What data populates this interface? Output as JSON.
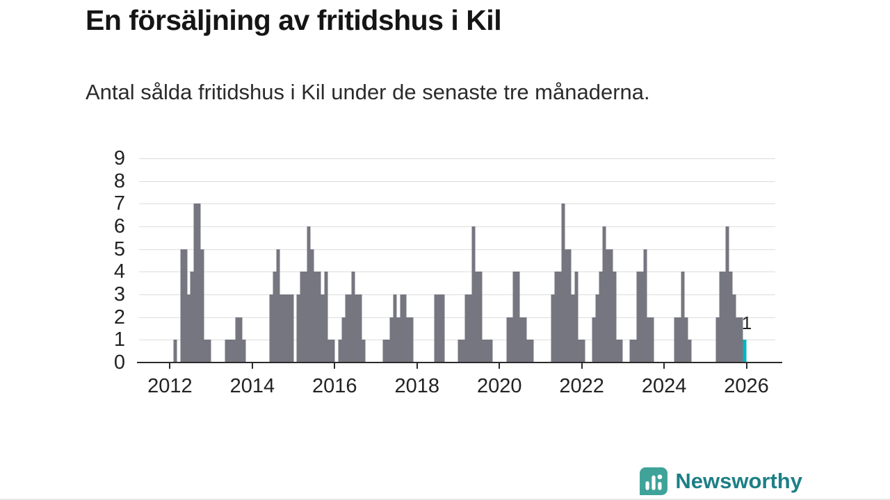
{
  "footer": {
    "brand": "Newsworthy"
  },
  "icons": {
    "brand": "chart-speech-bubble-icon"
  },
  "colors": {
    "bar": "#75767f",
    "highlight": "#00b6c2",
    "grid": "#dcdcdc",
    "axis": "#2b2b2b",
    "brand_icon": "#3fa39a",
    "brand_text": "#1d7f86"
  },
  "chart_data": {
    "type": "bar",
    "title": "En försäljning av fritidshus i Kil",
    "subtitle": "Antal sålda fritidshus i Kil under de senaste tre månaderna.",
    "xlabel": "",
    "ylabel": "",
    "ylim": [
      0,
      9
    ],
    "xlim": [
      2011.25,
      2026.7
    ],
    "y_ticks": [
      0,
      1,
      2,
      3,
      4,
      5,
      6,
      7,
      8,
      9
    ],
    "x_ticks": [
      2012,
      2014,
      2016,
      2018,
      2020,
      2022,
      2024,
      2026
    ],
    "grid": true,
    "legend": false,
    "x_unit": "month",
    "last_point_label": "1",
    "points": [
      [
        "2012-02",
        1
      ],
      [
        "2012-04",
        5
      ],
      [
        "2012-05",
        5
      ],
      [
        "2012-06",
        3
      ],
      [
        "2012-07",
        4
      ],
      [
        "2012-08",
        7
      ],
      [
        "2012-09",
        7
      ],
      [
        "2012-10",
        5
      ],
      [
        "2012-11",
        1
      ],
      [
        "2012-12",
        1
      ],
      [
        "2013-05",
        1
      ],
      [
        "2013-06",
        1
      ],
      [
        "2013-07",
        1
      ],
      [
        "2013-08",
        2
      ],
      [
        "2013-09",
        2
      ],
      [
        "2013-10",
        1
      ],
      [
        "2014-06",
        3
      ],
      [
        "2014-07",
        4
      ],
      [
        "2014-08",
        5
      ],
      [
        "2014-09",
        3
      ],
      [
        "2014-10",
        3
      ],
      [
        "2014-11",
        3
      ],
      [
        "2014-12",
        3
      ],
      [
        "2015-02",
        3
      ],
      [
        "2015-03",
        4
      ],
      [
        "2015-04",
        4
      ],
      [
        "2015-05",
        6
      ],
      [
        "2015-06",
        5
      ],
      [
        "2015-07",
        4
      ],
      [
        "2015-08",
        4
      ],
      [
        "2015-09",
        3
      ],
      [
        "2015-10",
        4
      ],
      [
        "2015-11",
        1
      ],
      [
        "2015-12",
        1
      ],
      [
        "2016-02",
        1
      ],
      [
        "2016-03",
        2
      ],
      [
        "2016-04",
        3
      ],
      [
        "2016-05",
        3
      ],
      [
        "2016-06",
        4
      ],
      [
        "2016-07",
        3
      ],
      [
        "2016-08",
        3
      ],
      [
        "2016-09",
        1
      ],
      [
        "2017-03",
        1
      ],
      [
        "2017-04",
        1
      ],
      [
        "2017-05",
        2
      ],
      [
        "2017-06",
        3
      ],
      [
        "2017-07",
        2
      ],
      [
        "2017-08",
        3
      ],
      [
        "2017-09",
        3
      ],
      [
        "2017-10",
        2
      ],
      [
        "2017-11",
        2
      ],
      [
        "2018-06",
        3
      ],
      [
        "2018-07",
        3
      ],
      [
        "2018-08",
        3
      ],
      [
        "2019-01",
        1
      ],
      [
        "2019-02",
        1
      ],
      [
        "2019-03",
        3
      ],
      [
        "2019-04",
        3
      ],
      [
        "2019-05",
        6
      ],
      [
        "2019-06",
        4
      ],
      [
        "2019-07",
        4
      ],
      [
        "2019-08",
        1
      ],
      [
        "2019-09",
        1
      ],
      [
        "2019-10",
        1
      ],
      [
        "2020-03",
        2
      ],
      [
        "2020-04",
        2
      ],
      [
        "2020-05",
        4
      ],
      [
        "2020-06",
        4
      ],
      [
        "2020-07",
        2
      ],
      [
        "2020-08",
        2
      ],
      [
        "2020-09",
        1
      ],
      [
        "2020-10",
        1
      ],
      [
        "2021-04",
        3
      ],
      [
        "2021-05",
        4
      ],
      [
        "2021-06",
        4
      ],
      [
        "2021-07",
        7
      ],
      [
        "2021-08",
        5
      ],
      [
        "2021-09",
        5
      ],
      [
        "2021-10",
        3
      ],
      [
        "2021-11",
        4
      ],
      [
        "2021-12",
        1
      ],
      [
        "2022-01",
        1
      ],
      [
        "2022-04",
        2
      ],
      [
        "2022-05",
        3
      ],
      [
        "2022-06",
        4
      ],
      [
        "2022-07",
        6
      ],
      [
        "2022-08",
        5
      ],
      [
        "2022-09",
        5
      ],
      [
        "2022-10",
        4
      ],
      [
        "2022-11",
        1
      ],
      [
        "2022-12",
        1
      ],
      [
        "2023-03",
        1
      ],
      [
        "2023-04",
        1
      ],
      [
        "2023-05",
        4
      ],
      [
        "2023-06",
        4
      ],
      [
        "2023-07",
        5
      ],
      [
        "2023-08",
        2
      ],
      [
        "2023-09",
        2
      ],
      [
        "2024-04",
        2
      ],
      [
        "2024-05",
        2
      ],
      [
        "2024-06",
        4
      ],
      [
        "2024-07",
        2
      ],
      [
        "2024-08",
        1
      ],
      [
        "2025-04",
        2
      ],
      [
        "2025-05",
        4
      ],
      [
        "2025-06",
        4
      ],
      [
        "2025-07",
        6
      ],
      [
        "2025-08",
        4
      ],
      [
        "2025-09",
        3
      ],
      [
        "2025-10",
        2
      ],
      [
        "2025-11",
        2
      ],
      [
        "2025-12",
        1,
        "highlight"
      ]
    ]
  }
}
